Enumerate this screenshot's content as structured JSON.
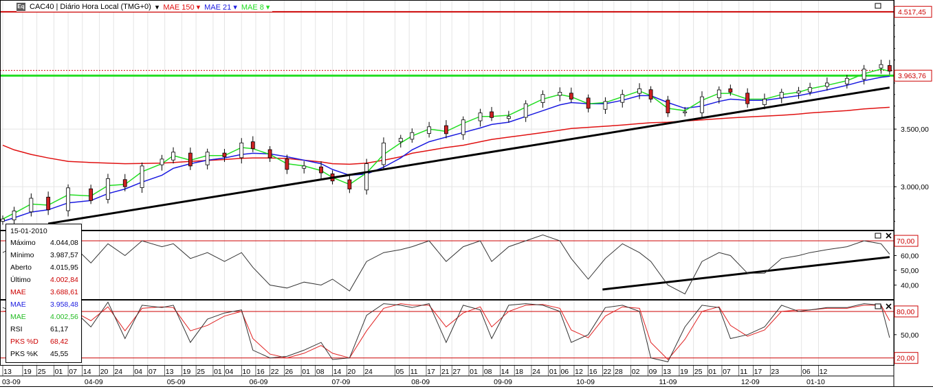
{
  "header": {
    "logo": "Eq",
    "title": "CAC40 | Diário Hora Local (TMG+0)",
    "indicators": [
      {
        "label": "MAE 150",
        "color": "#e01010"
      },
      {
        "label": "MAE 21",
        "color": "#1a1ae0"
      },
      {
        "label": "MAE 8",
        "color": "#22dd22"
      }
    ]
  },
  "info_panel": {
    "date": "15-01-2010",
    "rows": [
      {
        "label": "Máximo",
        "value": "4.044,08",
        "color": "#000000"
      },
      {
        "label": "Mínimo",
        "value": "3.987,57",
        "color": "#000000"
      },
      {
        "label": "Aberto",
        "value": "4.015,95",
        "color": "#000000"
      },
      {
        "label": "Último",
        "value": "4.002,84",
        "color": "#cc0000"
      },
      {
        "label": "MAE",
        "value": "3.688,61",
        "color": "#cc0000"
      },
      {
        "label": "MAE",
        "value": "3.958,48",
        "color": "#1a1ae0"
      },
      {
        "label": "MAE",
        "value": "4.002,56",
        "color": "#22bb22"
      },
      {
        "label": "RSI",
        "value": "61,17",
        "color": "#000000"
      },
      {
        "label": "PKS %D",
        "value": "68,42",
        "color": "#cc0000"
      },
      {
        "label": "PKS %K",
        "value": "45,55",
        "color": "#000000"
      }
    ]
  },
  "chart_data": [
    {
      "type": "candlestick",
      "panel": "price",
      "y_ticks": [
        "3.000,00",
        "3.500,00"
      ],
      "ylim": [
        2620,
        4620
      ],
      "price_labels": [
        {
          "value": "4.517,45",
          "color": "#cc0000"
        },
        {
          "value": "3.963,76",
          "color": "#cc0000"
        }
      ],
      "horizontal_levels": [
        4517.45,
        3963.76
      ],
      "x_dates": [
        "2009-03-09",
        "2009-03-13",
        "2009-03-19",
        "2009-03-25",
        "2009-04-01",
        "2009-04-09",
        "2009-04-15",
        "2009-04-21",
        "2009-04-27",
        "2009-05-04",
        "2009-05-08",
        "2009-05-14",
        "2009-05-20",
        "2009-05-26",
        "2009-06-01",
        "2009-06-05",
        "2009-06-11",
        "2009-06-17",
        "2009-06-23",
        "2009-06-29",
        "2009-07-03",
        "2009-07-09",
        "2009-07-15",
        "2009-07-21",
        "2009-07-27",
        "2009-07-31",
        "2009-08-06",
        "2009-08-12",
        "2009-08-18",
        "2009-08-24",
        "2009-08-28",
        "2009-09-03",
        "2009-09-09",
        "2009-09-15",
        "2009-09-21",
        "2009-09-25",
        "2009-10-01",
        "2009-10-07",
        "2009-10-13",
        "2009-10-19",
        "2009-10-23",
        "2009-10-29",
        "2009-11-04",
        "2009-11-10",
        "2009-11-16",
        "2009-11-20",
        "2009-11-26",
        "2009-12-02",
        "2009-12-08",
        "2009-12-14",
        "2009-12-18",
        "2009-12-24",
        "2009-12-31",
        "2010-01-06",
        "2010-01-12",
        "2010-01-15"
      ],
      "close": [
        2720,
        2790,
        2900,
        2800,
        2990,
        2880,
        3070,
        3000,
        3180,
        3240,
        3300,
        3180,
        3300,
        3260,
        3380,
        3330,
        3250,
        3150,
        3180,
        3120,
        3050,
        2980,
        3200,
        3380,
        3420,
        3470,
        3520,
        3460,
        3580,
        3640,
        3600,
        3610,
        3720,
        3800,
        3820,
        3760,
        3680,
        3740,
        3800,
        3850,
        3760,
        3640,
        3650,
        3780,
        3840,
        3820,
        3720,
        3760,
        3820,
        3830,
        3860,
        3900,
        3940,
        4020,
        4060,
        4003
      ],
      "mae_150": [
        3360,
        3320,
        3280,
        3250,
        3220,
        3210,
        3205,
        3200,
        3202,
        3205,
        3210,
        3220,
        3228,
        3236,
        3246,
        3250,
        3250,
        3245,
        3230,
        3215,
        3200,
        3195,
        3205,
        3230,
        3260,
        3290,
        3315,
        3340,
        3360,
        3390,
        3410,
        3430,
        3450,
        3470,
        3490,
        3505,
        3515,
        3525,
        3535,
        3548,
        3555,
        3560,
        3570,
        3580,
        3590,
        3597,
        3605,
        3612,
        3620,
        3630,
        3640,
        3650,
        3660,
        3675,
        3685,
        3689
      ],
      "mae_21": [
        2700,
        2730,
        2780,
        2800,
        2860,
        2880,
        2940,
        2980,
        3040,
        3100,
        3160,
        3200,
        3230,
        3250,
        3280,
        3290,
        3285,
        3260,
        3230,
        3200,
        3150,
        3100,
        3110,
        3170,
        3250,
        3320,
        3390,
        3430,
        3470,
        3510,
        3540,
        3560,
        3610,
        3660,
        3710,
        3730,
        3720,
        3720,
        3750,
        3790,
        3790,
        3730,
        3680,
        3700,
        3740,
        3760,
        3750,
        3750,
        3770,
        3790,
        3810,
        3840,
        3880,
        3920,
        3950,
        3958
      ],
      "mae_8": [
        2720,
        2770,
        2850,
        2840,
        2930,
        2920,
        3010,
        3020,
        3130,
        3200,
        3270,
        3230,
        3270,
        3270,
        3340,
        3330,
        3280,
        3200,
        3180,
        3140,
        3080,
        3020,
        3120,
        3280,
        3380,
        3440,
        3500,
        3480,
        3550,
        3610,
        3610,
        3620,
        3690,
        3760,
        3800,
        3780,
        3720,
        3730,
        3780,
        3830,
        3790,
        3680,
        3660,
        3750,
        3810,
        3810,
        3760,
        3760,
        3800,
        3820,
        3850,
        3880,
        3920,
        3980,
        4020,
        4003
      ],
      "trendline": {
        "start": [
          "2009-03-25",
          2680
        ],
        "end": [
          "2010-01-15",
          3860
        ]
      }
    },
    {
      "type": "line",
      "panel": "RSI",
      "y_ticks": [
        "40,00",
        "50,00",
        "60,00"
      ],
      "ylim": [
        30,
        77
      ],
      "level_labels": [
        {
          "value": "70,00",
          "color": "#cc0000"
        }
      ],
      "levels": [
        70,
        30
      ],
      "rsi": [
        62,
        66,
        72,
        58,
        70,
        55,
        68,
        60,
        70,
        66,
        68,
        58,
        62,
        56,
        62,
        52,
        40,
        38,
        42,
        40,
        44,
        36,
        56,
        62,
        64,
        66,
        70,
        56,
        66,
        70,
        56,
        66,
        70,
        74,
        70,
        58,
        44,
        58,
        68,
        62,
        56,
        40,
        34,
        56,
        62,
        60,
        48,
        48,
        58,
        60,
        62,
        64,
        66,
        70,
        68,
        61
      ],
      "trendline": {
        "start": [
          "2009-10-06",
          37
        ],
        "end": [
          "2010-01-15",
          59
        ]
      }
    },
    {
      "type": "line",
      "panel": "PKS stochastic",
      "y_ticks": [
        "50,00"
      ],
      "ylim": [
        10,
        95
      ],
      "level_labels": [
        {
          "value": "80,00",
          "color": "#cc0000"
        },
        {
          "value": "20,00",
          "color": "#cc0000"
        }
      ],
      "levels": [
        80,
        20
      ],
      "pks_k": [
        85,
        80,
        90,
        70,
        88,
        60,
        92,
        45,
        88,
        85,
        88,
        40,
        70,
        78,
        82,
        30,
        20,
        22,
        30,
        40,
        18,
        20,
        75,
        90,
        88,
        85,
        90,
        40,
        88,
        82,
        45,
        88,
        90,
        88,
        80,
        40,
        50,
        85,
        88,
        80,
        20,
        15,
        60,
        88,
        85,
        45,
        50,
        60,
        88,
        80,
        82,
        85,
        85,
        90,
        88,
        46
      ],
      "pks_d": [
        80,
        82,
        85,
        78,
        84,
        68,
        86,
        55,
        84,
        86,
        85,
        55,
        62,
        74,
        80,
        45,
        25,
        20,
        26,
        36,
        26,
        20,
        55,
        84,
        90,
        88,
        88,
        60,
        78,
        86,
        60,
        80,
        88,
        89,
        84,
        56,
        46,
        74,
        86,
        84,
        40,
        18,
        44,
        80,
        86,
        62,
        48,
        56,
        80,
        82,
        82,
        84,
        84,
        88,
        88,
        68
      ]
    }
  ],
  "x_axis": {
    "day_ticks": [
      {
        "date": "2009-03-09",
        "label": "13"
      },
      {
        "date": "2009-03-16",
        "label": "19"
      },
      {
        "date": "2009-03-21",
        "label": "25"
      },
      {
        "date": "2009-03-27",
        "label": "01"
      },
      {
        "date": "2009-04-01",
        "label": "07"
      },
      {
        "date": "2009-04-06",
        "label": "14"
      },
      {
        "date": "2009-04-12",
        "label": "20"
      },
      {
        "date": "2009-04-17",
        "label": "24"
      },
      {
        "date": "2009-04-24",
        "label": "04"
      },
      {
        "date": "2009-04-29",
        "label": "07"
      },
      {
        "date": "2009-05-05",
        "label": "13"
      },
      {
        "date": "2009-05-11",
        "label": "19"
      },
      {
        "date": "2009-05-16",
        "label": "25"
      },
      {
        "date": "2009-05-22",
        "label": "01"
      },
      {
        "date": "2009-05-26",
        "label": "04"
      },
      {
        "date": "2009-06-01",
        "label": "10"
      },
      {
        "date": "2009-06-06",
        "label": "16"
      },
      {
        "date": "2009-06-11",
        "label": "22"
      },
      {
        "date": "2009-06-16",
        "label": "26"
      },
      {
        "date": "2009-06-22",
        "label": "01"
      },
      {
        "date": "2009-06-27",
        "label": "08"
      },
      {
        "date": "2009-07-03",
        "label": "14"
      },
      {
        "date": "2009-07-08",
        "label": "20"
      },
      {
        "date": "2009-07-14",
        "label": "24"
      },
      {
        "date": "2009-07-25",
        "label": "05"
      },
      {
        "date": "2009-07-30",
        "label": "11"
      },
      {
        "date": "2009-08-05",
        "label": "17"
      },
      {
        "date": "2009-08-10",
        "label": "21"
      },
      {
        "date": "2009-08-14",
        "label": "27"
      },
      {
        "date": "2009-08-20",
        "label": "01"
      },
      {
        "date": "2009-08-25",
        "label": "08"
      },
      {
        "date": "2009-08-31",
        "label": "14"
      },
      {
        "date": "2009-09-05",
        "label": "18"
      },
      {
        "date": "2009-09-11",
        "label": "24"
      },
      {
        "date": "2009-09-17",
        "label": "01"
      },
      {
        "date": "2009-09-21",
        "label": "06"
      },
      {
        "date": "2009-09-26",
        "label": "12"
      },
      {
        "date": "2009-10-01",
        "label": "16"
      },
      {
        "date": "2009-10-06",
        "label": "22"
      },
      {
        "date": "2009-10-10",
        "label": "28"
      },
      {
        "date": "2009-10-16",
        "label": "02"
      },
      {
        "date": "2009-10-22",
        "label": "09"
      },
      {
        "date": "2009-10-27",
        "label": "13"
      },
      {
        "date": "2009-11-02",
        "label": "19"
      },
      {
        "date": "2009-11-07",
        "label": "25"
      },
      {
        "date": "2009-11-12",
        "label": "01"
      },
      {
        "date": "2009-11-17",
        "label": "07"
      },
      {
        "date": "2009-11-23",
        "label": "11"
      },
      {
        "date": "2009-11-28",
        "label": "17"
      },
      {
        "date": "2009-12-04",
        "label": "23"
      },
      {
        "date": "2009-12-15",
        "label": "06"
      },
      {
        "date": "2009-12-21",
        "label": "12"
      }
    ],
    "month_ticks": [
      {
        "date": "2009-03-12",
        "label": "03-09"
      },
      {
        "date": "2009-04-10",
        "label": "04-09"
      },
      {
        "date": "2009-05-09",
        "label": "05-09"
      },
      {
        "date": "2009-06-07",
        "label": "06-09"
      },
      {
        "date": "2009-07-06",
        "label": "07-09"
      },
      {
        "date": "2009-08-03",
        "label": "08-09"
      },
      {
        "date": "2009-09-01",
        "label": "09-09"
      },
      {
        "date": "2009-09-30",
        "label": "10-09"
      },
      {
        "date": "2009-10-29",
        "label": "11-09"
      },
      {
        "date": "2009-11-27",
        "label": "12-09"
      },
      {
        "date": "2009-12-20",
        "label": "01-10"
      }
    ]
  },
  "colors": {
    "mae_150": "#e01010",
    "mae_21": "#1a1ae0",
    "mae_8": "#22dd22",
    "level_red": "#cc0000",
    "level_green": "#22dd22",
    "trendline": "#000000",
    "bull_candle": "#ffffff",
    "bear_candle": "#cc2222"
  }
}
